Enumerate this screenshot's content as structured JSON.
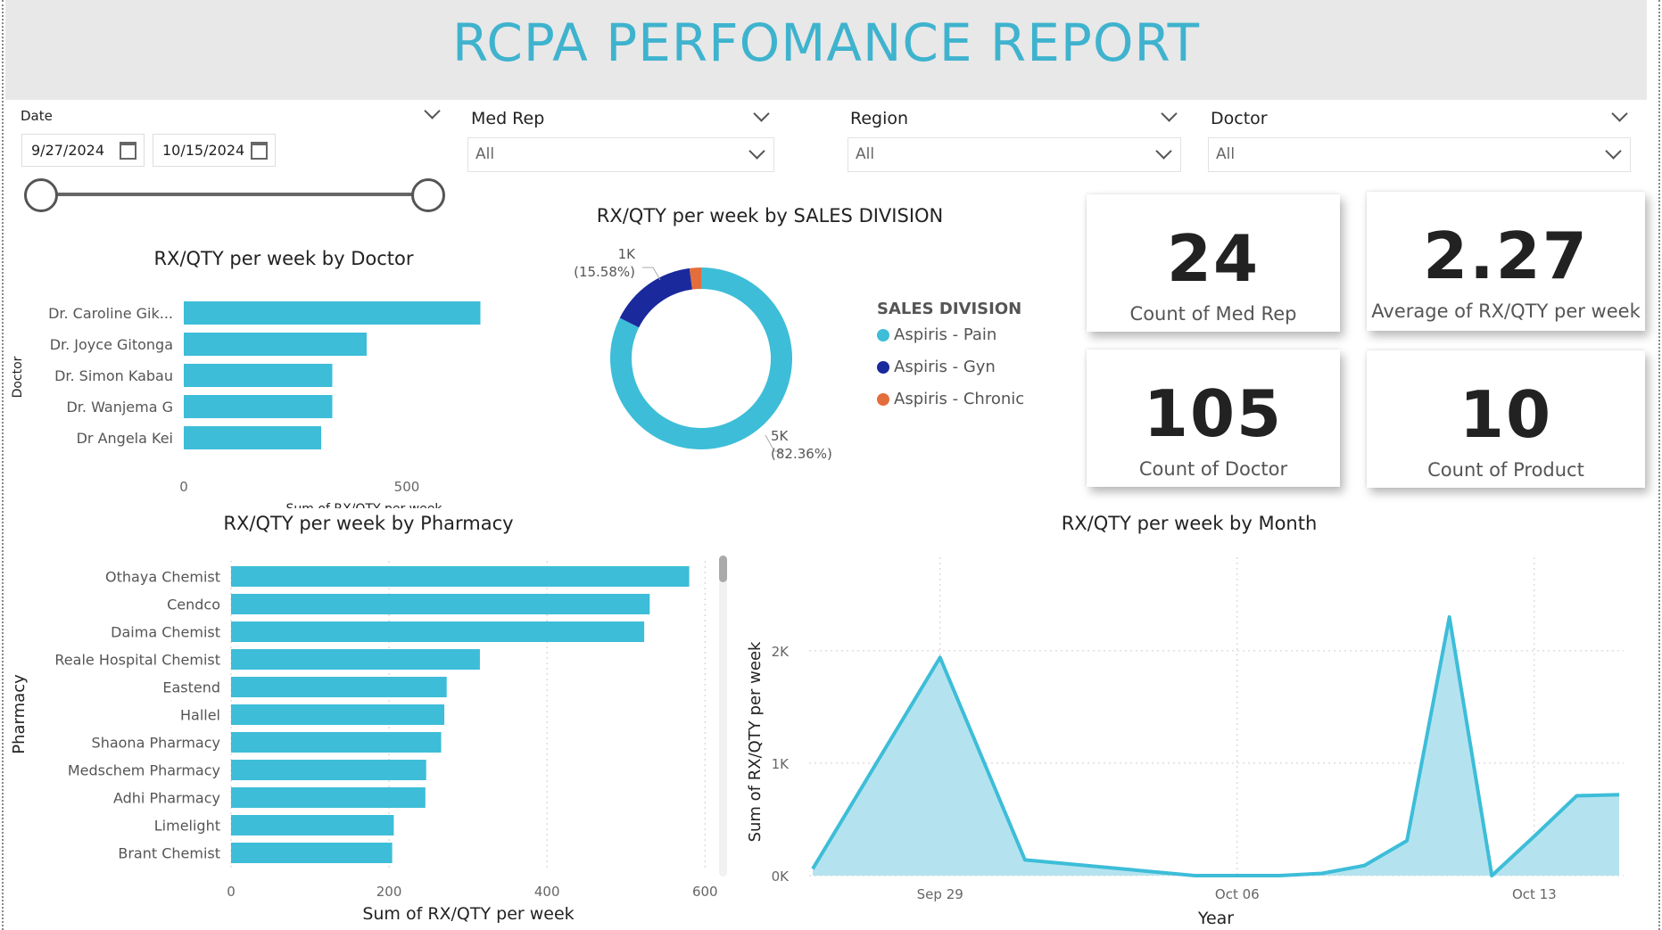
{
  "title": "RCPA PERFOMANCE REPORT",
  "filters": {
    "date": {
      "label": "Date",
      "start": "9/27/2024",
      "end": "10/15/2024"
    },
    "med_rep": {
      "label": "Med Rep",
      "value": "All"
    },
    "region": {
      "label": "Region",
      "value": "All"
    },
    "doctor": {
      "label": "Doctor",
      "value": "All"
    }
  },
  "kpis": [
    {
      "value": "24",
      "label": "Count of Med Rep"
    },
    {
      "value": "2.27",
      "label": "Average of RX/QTY per week"
    },
    {
      "value": "105",
      "label": "Count of Doctor"
    },
    {
      "value": "10",
      "label": "Count of Product"
    }
  ],
  "colors": {
    "accent": "#3dbdd8",
    "pain": "#3dbdd8",
    "gyn": "#1a2a9c",
    "chronic": "#e46d3c"
  },
  "chart_data": [
    {
      "type": "bar",
      "orientation": "horizontal",
      "title": "RX/QTY per week by Doctor",
      "xlabel": "Sum of RX/QTY per week",
      "ylabel": "Doctor",
      "xlim": [
        0,
        700
      ],
      "xticks": [
        0,
        500
      ],
      "xtick_labels": [
        "0",
        "500"
      ],
      "categories": [
        "Dr. Caroline Gik...",
        "Dr. Joyce Gitonga",
        "Dr. Simon Kabau",
        "Dr. Wanjema G",
        "Dr Angela Kei"
      ],
      "values": [
        665,
        410,
        333,
        333,
        308
      ]
    },
    {
      "type": "pie",
      "donut": true,
      "title": "RX/QTY per week by SALES DIVISION",
      "legend_title": "SALES DIVISION",
      "legend_position": "right",
      "categories": [
        "Aspiris - Pain",
        "Aspiris - Gyn",
        "Aspiris - Chronic"
      ],
      "values": [
        82.36,
        15.58,
        2.06
      ],
      "data_labels": [
        {
          "value": "5K",
          "percent": "(82.36%)"
        },
        {
          "value": "1K",
          "percent": "(15.58%)"
        }
      ]
    },
    {
      "type": "bar",
      "orientation": "horizontal",
      "title": "RX/QTY per week by Pharmacy",
      "xlabel": "Sum of RX/QTY per week",
      "ylabel": "Pharmacy",
      "xlim": [
        0,
        620
      ],
      "xticks": [
        0,
        200,
        400,
        600
      ],
      "xtick_labels": [
        "0",
        "200",
        "400",
        "600"
      ],
      "grid": true,
      "categories": [
        "Othaya Chemist",
        "Cendco",
        "Daima Chemist",
        "Reale Hospital Chemist",
        "Eastend",
        "Hallel",
        "Shaona Pharmacy",
        "Medschem Pharmacy",
        "Adhi Pharmacy",
        "Limelight",
        "Brant Chemist"
      ],
      "values": [
        580,
        530,
        523,
        315,
        273,
        270,
        266,
        247,
        246,
        206,
        204
      ]
    },
    {
      "type": "area",
      "title": "RX/QTY per week by Month",
      "xlabel": "Year",
      "ylabel": "Sum of RX/QTY per week",
      "ylim": [
        0,
        2300
      ],
      "yticks": [
        0,
        1000,
        2000
      ],
      "ytick_labels": [
        "0K",
        "1K",
        "2K"
      ],
      "x_range": [
        "2024-09-26",
        "2024-10-15"
      ],
      "xticks": [
        "2024-09-29",
        "2024-10-06",
        "2024-10-13"
      ],
      "xtick_labels": [
        "Sep 29",
        "Oct 06",
        "Oct 13"
      ],
      "grid": true,
      "x": [
        "2024-09-26",
        "2024-09-29",
        "2024-10-01",
        "2024-10-05",
        "2024-10-06",
        "2024-10-07",
        "2024-10-08",
        "2024-10-09",
        "2024-10-10",
        "2024-10-11",
        "2024-10-12",
        "2024-10-13",
        "2024-10-14",
        "2024-10-15"
      ],
      "values": [
        60,
        1940,
        140,
        0,
        0,
        0,
        20,
        90,
        310,
        2300,
        0,
        350,
        710,
        720
      ]
    }
  ]
}
